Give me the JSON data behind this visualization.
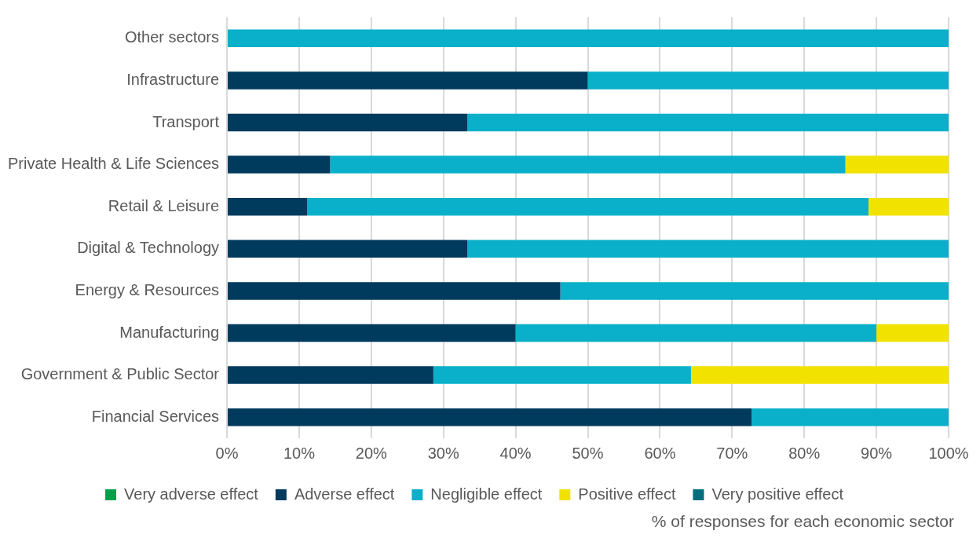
{
  "chart_data": {
    "type": "bar",
    "orientation": "horizontal",
    "stacked": true,
    "categories": [
      "Other sectors",
      "Infrastructure",
      "Transport",
      "Private Health & Life Sciences",
      "Retail & Leisure",
      "Digital & Technology",
      "Energy & Resources",
      "Manufacturing",
      "Government & Public Sector",
      "Financial Services"
    ],
    "series": [
      {
        "name": "Very adverse effect",
        "color": "#00a04a",
        "values": [
          0,
          0,
          0,
          0,
          0,
          0,
          0,
          0,
          0,
          0
        ]
      },
      {
        "name": "Adverse effect",
        "color": "#003a5d",
        "values": [
          0,
          50,
          33.3,
          14.3,
          11.1,
          33.3,
          46.2,
          40,
          28.6,
          72.7
        ]
      },
      {
        "name": "Negligible effect",
        "color": "#0ab0c9",
        "values": [
          100,
          50,
          66.7,
          71.4,
          77.8,
          66.7,
          53.8,
          50,
          35.7,
          27.3
        ]
      },
      {
        "name": "Positive effect",
        "color": "#f2e200",
        "values": [
          0,
          0,
          0,
          14.3,
          11.1,
          0,
          0,
          10,
          35.7,
          0
        ]
      },
      {
        "name": "Very positive effect",
        "color": "#006e7f",
        "values": [
          0,
          0,
          0,
          0,
          0,
          0,
          0,
          0,
          0,
          0
        ]
      }
    ],
    "xlim": [
      0,
      100
    ],
    "xticks": [
      {
        "value": 0,
        "label": "0%"
      },
      {
        "value": 10,
        "label": "10%"
      },
      {
        "value": 20,
        "label": "20%"
      },
      {
        "value": 30,
        "label": "30%"
      },
      {
        "value": 40,
        "label": "40%"
      },
      {
        "value": 50,
        "label": "50%"
      },
      {
        "value": 60,
        "label": "60%"
      },
      {
        "value": 70,
        "label": "70%"
      },
      {
        "value": 80,
        "label": "80%"
      },
      {
        "value": 90,
        "label": "90%"
      },
      {
        "value": 100,
        "label": "100%"
      }
    ],
    "grid": "x",
    "legend": "bottom",
    "xlabel": "% of responses for each economic sector"
  }
}
